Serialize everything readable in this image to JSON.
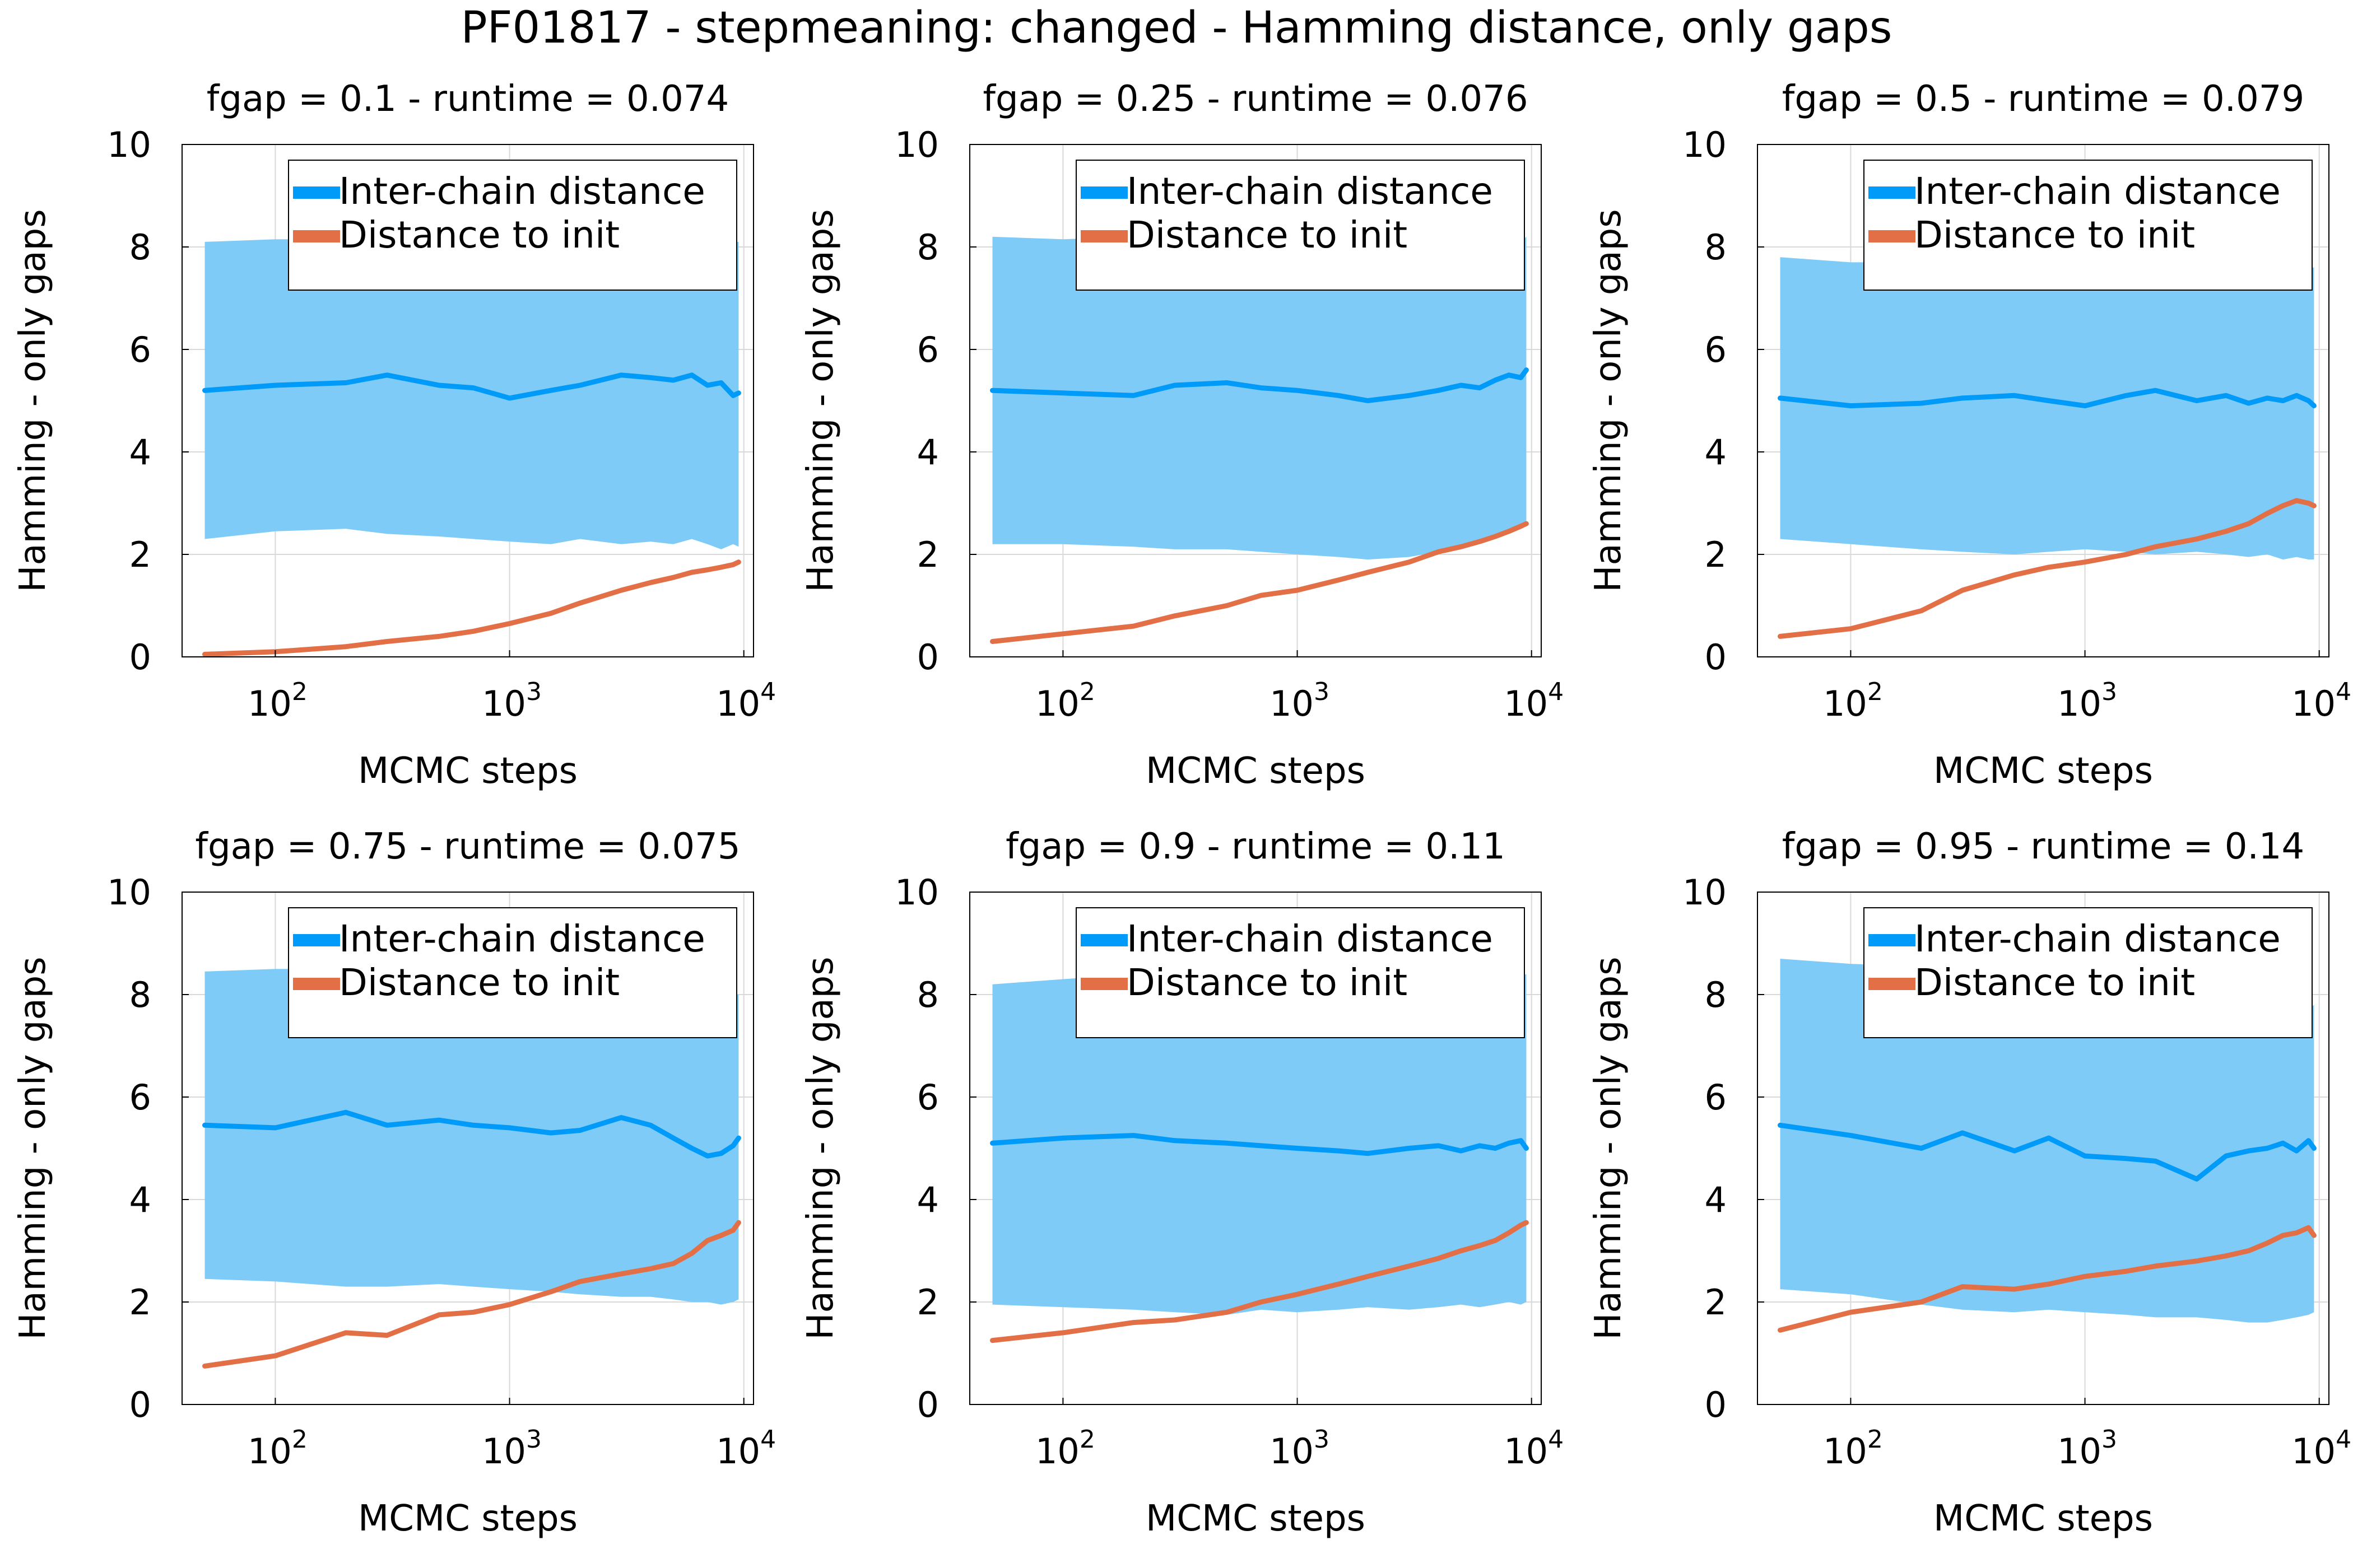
{
  "figure": {
    "title": "PF01817 - stepmeaning: changed - Hamming distance, only gaps"
  },
  "colors": {
    "inter_chain": "#009af9",
    "band": "#7ecbf8",
    "distance_to_init": "#e26f46",
    "grid": "#d9d9d9",
    "axis": "#000000"
  },
  "chart_data": [
    {
      "type": "line",
      "title": "fgap = 0.1 - runtime = 0.074",
      "xlabel": "MCMC steps",
      "ylabel": "Hamming - only gaps",
      "xscale": "log",
      "xlim": [
        40,
        11000
      ],
      "ylim": [
        0,
        10
      ],
      "xticks": [
        100,
        1000,
        10000
      ],
      "xtick_labels": [
        {
          "base": "10",
          "exp": "2"
        },
        {
          "base": "10",
          "exp": "3"
        },
        {
          "base": "10",
          "exp": "4"
        }
      ],
      "yticks": [
        0,
        2,
        4,
        6,
        8,
        10
      ],
      "grid": true,
      "legend_position": "top-right",
      "x": [
        50,
        100,
        200,
        300,
        500,
        700,
        1000,
        1500,
        2000,
        3000,
        4000,
        5000,
        6000,
        7000,
        8000,
        9000,
        9500
      ],
      "series": [
        {
          "name": "Inter-chain distance",
          "values": [
            5.2,
            5.3,
            5.35,
            5.5,
            5.3,
            5.25,
            5.05,
            5.2,
            5.3,
            5.5,
            5.45,
            5.4,
            5.5,
            5.3,
            5.35,
            5.1,
            5.15
          ]
        },
        {
          "name": "Distance to init",
          "values": [
            0.05,
            0.1,
            0.2,
            0.3,
            0.4,
            0.5,
            0.65,
            0.85,
            1.05,
            1.3,
            1.45,
            1.55,
            1.65,
            1.7,
            1.75,
            1.8,
            1.85
          ]
        }
      ],
      "band": {
        "upper": [
          8.1,
          8.15,
          8.15,
          8.1,
          8.15,
          8.2,
          8.15,
          8.1,
          8.2,
          8.2,
          8.1,
          8.15,
          8.2,
          8.1,
          8.15,
          8.1,
          8.1
        ],
        "lower": [
          2.3,
          2.45,
          2.5,
          2.4,
          2.35,
          2.3,
          2.25,
          2.2,
          2.3,
          2.2,
          2.25,
          2.2,
          2.3,
          2.2,
          2.1,
          2.2,
          2.15
        ]
      }
    },
    {
      "type": "line",
      "title": "fgap = 0.25 - runtime = 0.076",
      "xlabel": "MCMC steps",
      "ylabel": "Hamming - only gaps",
      "xscale": "log",
      "xlim": [
        40,
        11000
      ],
      "ylim": [
        0,
        10
      ],
      "xticks": [
        100,
        1000,
        10000
      ],
      "xtick_labels": [
        {
          "base": "10",
          "exp": "2"
        },
        {
          "base": "10",
          "exp": "3"
        },
        {
          "base": "10",
          "exp": "4"
        }
      ],
      "yticks": [
        0,
        2,
        4,
        6,
        8,
        10
      ],
      "grid": true,
      "legend_position": "top-right",
      "x": [
        50,
        100,
        200,
        300,
        500,
        700,
        1000,
        1500,
        2000,
        3000,
        4000,
        5000,
        6000,
        7000,
        8000,
        9000,
        9500
      ],
      "series": [
        {
          "name": "Inter-chain distance",
          "values": [
            5.2,
            5.15,
            5.1,
            5.3,
            5.35,
            5.25,
            5.2,
            5.1,
            5.0,
            5.1,
            5.2,
            5.3,
            5.25,
            5.4,
            5.5,
            5.45,
            5.6
          ]
        },
        {
          "name": "Distance to init",
          "values": [
            0.3,
            0.45,
            0.6,
            0.8,
            1.0,
            1.2,
            1.3,
            1.5,
            1.65,
            1.85,
            2.05,
            2.15,
            2.25,
            2.35,
            2.45,
            2.55,
            2.6
          ]
        }
      ],
      "band": {
        "upper": [
          8.2,
          8.15,
          8.2,
          8.1,
          8.15,
          8.2,
          8.2,
          8.1,
          8.2,
          8.2,
          8.15,
          8.1,
          8.2,
          8.15,
          8.2,
          8.1,
          8.2
        ],
        "lower": [
          2.2,
          2.2,
          2.15,
          2.1,
          2.1,
          2.05,
          2.0,
          1.95,
          1.9,
          1.95,
          2.05,
          2.1,
          2.2,
          2.3,
          2.4,
          2.5,
          2.55
        ]
      }
    },
    {
      "type": "line",
      "title": "fgap = 0.5 - runtime = 0.079",
      "xlabel": "MCMC steps",
      "ylabel": "Hamming - only gaps",
      "xscale": "log",
      "xlim": [
        40,
        11000
      ],
      "ylim": [
        0,
        10
      ],
      "xticks": [
        100,
        1000,
        10000
      ],
      "xtick_labels": [
        {
          "base": "10",
          "exp": "2"
        },
        {
          "base": "10",
          "exp": "3"
        },
        {
          "base": "10",
          "exp": "4"
        }
      ],
      "yticks": [
        0,
        2,
        4,
        6,
        8,
        10
      ],
      "grid": true,
      "legend_position": "top-right",
      "x": [
        50,
        100,
        200,
        300,
        500,
        700,
        1000,
        1500,
        2000,
        3000,
        4000,
        5000,
        6000,
        7000,
        8000,
        9000,
        9500
      ],
      "series": [
        {
          "name": "Inter-chain distance",
          "values": [
            5.05,
            4.9,
            4.95,
            5.05,
            5.1,
            5.0,
            4.9,
            5.1,
            5.2,
            5.0,
            5.1,
            4.95,
            5.05,
            5.0,
            5.1,
            5.0,
            4.9
          ]
        },
        {
          "name": "Distance to init",
          "values": [
            0.4,
            0.55,
            0.9,
            1.3,
            1.6,
            1.75,
            1.85,
            2.0,
            2.15,
            2.3,
            2.45,
            2.6,
            2.8,
            2.95,
            3.05,
            3.0,
            2.95
          ]
        }
      ],
      "band": {
        "upper": [
          7.8,
          7.7,
          7.7,
          7.65,
          7.6,
          7.7,
          7.65,
          7.6,
          7.7,
          7.6,
          7.65,
          7.6,
          7.7,
          7.6,
          7.7,
          7.6,
          7.6
        ],
        "lower": [
          2.3,
          2.2,
          2.1,
          2.05,
          2.0,
          2.05,
          2.1,
          2.05,
          2.0,
          2.05,
          2.0,
          1.95,
          2.0,
          1.9,
          1.95,
          1.9,
          1.9
        ]
      }
    },
    {
      "type": "line",
      "title": "fgap = 0.75 - runtime = 0.075",
      "xlabel": "MCMC steps",
      "ylabel": "Hamming - only gaps",
      "xscale": "log",
      "xlim": [
        40,
        11000
      ],
      "ylim": [
        0,
        10
      ],
      "xticks": [
        100,
        1000,
        10000
      ],
      "xtick_labels": [
        {
          "base": "10",
          "exp": "2"
        },
        {
          "base": "10",
          "exp": "3"
        },
        {
          "base": "10",
          "exp": "4"
        }
      ],
      "yticks": [
        0,
        2,
        4,
        6,
        8,
        10
      ],
      "grid": true,
      "legend_position": "top-right",
      "x": [
        50,
        100,
        200,
        300,
        500,
        700,
        1000,
        1500,
        2000,
        3000,
        4000,
        5000,
        6000,
        7000,
        8000,
        9000,
        9500
      ],
      "series": [
        {
          "name": "Inter-chain distance",
          "values": [
            5.45,
            5.4,
            5.7,
            5.45,
            5.55,
            5.45,
            5.4,
            5.3,
            5.35,
            5.6,
            5.45,
            5.2,
            5.0,
            4.85,
            4.9,
            5.05,
            5.2
          ]
        },
        {
          "name": "Distance to init",
          "values": [
            0.75,
            0.95,
            1.4,
            1.35,
            1.75,
            1.8,
            1.95,
            2.2,
            2.4,
            2.55,
            2.65,
            2.75,
            2.95,
            3.2,
            3.3,
            3.4,
            3.55
          ]
        }
      ],
      "band": {
        "upper": [
          8.45,
          8.5,
          8.5,
          8.45,
          8.5,
          8.45,
          8.5,
          8.45,
          8.5,
          8.45,
          8.4,
          8.45,
          8.3,
          8.2,
          8.1,
          8.0,
          8.0
        ],
        "lower": [
          2.45,
          2.4,
          2.3,
          2.3,
          2.35,
          2.3,
          2.25,
          2.2,
          2.15,
          2.1,
          2.1,
          2.05,
          2.0,
          2.0,
          1.95,
          2.0,
          2.05
        ]
      }
    },
    {
      "type": "line",
      "title": "fgap = 0.9 - runtime = 0.11",
      "xlabel": "MCMC steps",
      "ylabel": "Hamming - only gaps",
      "xscale": "log",
      "xlim": [
        40,
        11000
      ],
      "ylim": [
        0,
        10
      ],
      "xticks": [
        100,
        1000,
        10000
      ],
      "xtick_labels": [
        {
          "base": "10",
          "exp": "2"
        },
        {
          "base": "10",
          "exp": "3"
        },
        {
          "base": "10",
          "exp": "4"
        }
      ],
      "yticks": [
        0,
        2,
        4,
        6,
        8,
        10
      ],
      "grid": true,
      "legend_position": "top-right",
      "x": [
        50,
        100,
        200,
        300,
        500,
        700,
        1000,
        1500,
        2000,
        3000,
        4000,
        5000,
        6000,
        7000,
        8000,
        9000,
        9500
      ],
      "series": [
        {
          "name": "Inter-chain distance",
          "values": [
            5.1,
            5.2,
            5.25,
            5.15,
            5.1,
            5.05,
            5.0,
            4.95,
            4.9,
            5.0,
            5.05,
            4.95,
            5.05,
            5.0,
            5.1,
            5.15,
            5.0
          ]
        },
        {
          "name": "Distance to init",
          "values": [
            1.25,
            1.4,
            1.6,
            1.65,
            1.8,
            2.0,
            2.15,
            2.35,
            2.5,
            2.7,
            2.85,
            3.0,
            3.1,
            3.2,
            3.35,
            3.5,
            3.55
          ]
        }
      ],
      "band": {
        "upper": [
          8.2,
          8.3,
          8.4,
          8.4,
          8.45,
          8.4,
          8.45,
          8.4,
          8.45,
          8.4,
          8.45,
          8.4,
          8.45,
          8.4,
          8.4,
          8.35,
          8.4
        ],
        "lower": [
          1.95,
          1.9,
          1.85,
          1.8,
          1.75,
          1.85,
          1.8,
          1.85,
          1.9,
          1.85,
          1.9,
          1.95,
          1.9,
          1.95,
          2.0,
          1.95,
          2.0
        ]
      }
    },
    {
      "type": "line",
      "title": "fgap = 0.95 - runtime = 0.14",
      "xlabel": "MCMC steps",
      "ylabel": "Hamming - only gaps",
      "xscale": "log",
      "xlim": [
        40,
        11000
      ],
      "ylim": [
        0,
        10
      ],
      "xticks": [
        100,
        1000,
        10000
      ],
      "xtick_labels": [
        {
          "base": "10",
          "exp": "2"
        },
        {
          "base": "10",
          "exp": "3"
        },
        {
          "base": "10",
          "exp": "4"
        }
      ],
      "yticks": [
        0,
        2,
        4,
        6,
        8,
        10
      ],
      "grid": true,
      "legend_position": "top-right",
      "x": [
        50,
        100,
        200,
        300,
        500,
        700,
        1000,
        1500,
        2000,
        3000,
        4000,
        5000,
        6000,
        7000,
        8000,
        9000,
        9500
      ],
      "series": [
        {
          "name": "Inter-chain distance",
          "values": [
            5.45,
            5.25,
            5.0,
            5.3,
            4.95,
            5.2,
            4.85,
            4.8,
            4.75,
            4.4,
            4.85,
            4.95,
            5.0,
            5.1,
            4.95,
            5.15,
            5.0
          ]
        },
        {
          "name": "Distance to init",
          "values": [
            1.45,
            1.8,
            2.0,
            2.3,
            2.25,
            2.35,
            2.5,
            2.6,
            2.7,
            2.8,
            2.9,
            3.0,
            3.15,
            3.3,
            3.35,
            3.45,
            3.3
          ]
        }
      ],
      "band": {
        "upper": [
          8.7,
          8.6,
          8.55,
          8.5,
          8.45,
          8.5,
          8.4,
          8.45,
          8.4,
          8.3,
          8.2,
          8.0,
          7.9,
          7.8,
          7.7,
          7.7,
          7.8
        ],
        "lower": [
          2.25,
          2.15,
          1.95,
          1.85,
          1.8,
          1.85,
          1.8,
          1.75,
          1.7,
          1.7,
          1.65,
          1.6,
          1.6,
          1.65,
          1.7,
          1.75,
          1.8
        ]
      }
    }
  ]
}
